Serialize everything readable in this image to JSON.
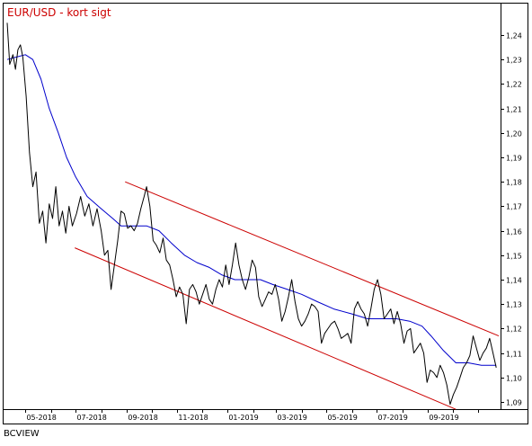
{
  "chart_data": {
    "type": "line",
    "title": "EUR/USD - kort sigt",
    "xlabel": "",
    "ylabel": "",
    "ylim": [
      1.085,
      1.245
    ],
    "y_ticks": [
      1.09,
      1.1,
      1.11,
      1.12,
      1.13,
      1.14,
      1.15,
      1.16,
      1.17,
      1.18,
      1.19,
      1.2,
      1.21,
      1.22,
      1.23,
      1.24
    ],
    "y_tick_labels": [
      "1,09",
      "1,10",
      "1,11",
      "1,12",
      "1,13",
      "1,14",
      "1,15",
      "1,16",
      "1,17",
      "1,18",
      "1,19",
      "1,20",
      "1,21",
      "1,22",
      "1,23",
      "1,24"
    ],
    "y_axis_side": "right",
    "x_tick_labels": [
      "05-2018",
      "07-2018",
      "09-2018",
      "11-2018",
      "01-2019",
      "03-2019",
      "05-2019",
      "07-2019",
      "09-2019"
    ],
    "grid": false,
    "series": [
      {
        "role": "price",
        "color": "#000000",
        "points": [
          [
            "2018-04-09",
            1.245
          ],
          [
            "2018-04-12",
            1.228
          ],
          [
            "2018-04-16",
            1.232
          ],
          [
            "2018-04-19",
            1.226
          ],
          [
            "2018-04-22",
            1.234
          ],
          [
            "2018-04-25",
            1.236
          ],
          [
            "2018-04-28",
            1.231
          ],
          [
            "2018-05-02",
            1.215
          ],
          [
            "2018-05-06",
            1.192
          ],
          [
            "2018-05-10",
            1.178
          ],
          [
            "2018-05-14",
            1.184
          ],
          [
            "2018-05-18",
            1.163
          ],
          [
            "2018-05-22",
            1.168
          ],
          [
            "2018-05-26",
            1.155
          ],
          [
            "2018-05-30",
            1.171
          ],
          [
            "2018-06-03",
            1.165
          ],
          [
            "2018-06-07",
            1.178
          ],
          [
            "2018-06-11",
            1.162
          ],
          [
            "2018-06-15",
            1.168
          ],
          [
            "2018-06-19",
            1.159
          ],
          [
            "2018-06-23",
            1.17
          ],
          [
            "2018-06-27",
            1.162
          ],
          [
            "2018-07-02",
            1.167
          ],
          [
            "2018-07-07",
            1.174
          ],
          [
            "2018-07-12",
            1.166
          ],
          [
            "2018-07-17",
            1.171
          ],
          [
            "2018-07-22",
            1.162
          ],
          [
            "2018-07-27",
            1.169
          ],
          [
            "2018-08-01",
            1.16
          ],
          [
            "2018-08-05",
            1.15
          ],
          [
            "2018-08-09",
            1.152
          ],
          [
            "2018-08-13",
            1.136
          ],
          [
            "2018-08-17",
            1.146
          ],
          [
            "2018-08-21",
            1.156
          ],
          [
            "2018-08-25",
            1.168
          ],
          [
            "2018-08-29",
            1.167
          ],
          [
            "2018-09-02",
            1.161
          ],
          [
            "2018-09-06",
            1.162
          ],
          [
            "2018-09-10",
            1.16
          ],
          [
            "2018-09-14",
            1.163
          ],
          [
            "2018-09-18",
            1.169
          ],
          [
            "2018-09-22",
            1.174
          ],
          [
            "2018-09-25",
            1.178
          ],
          [
            "2018-09-29",
            1.17
          ],
          [
            "2018-10-03",
            1.156
          ],
          [
            "2018-10-07",
            1.154
          ],
          [
            "2018-10-11",
            1.151
          ],
          [
            "2018-10-15",
            1.157
          ],
          [
            "2018-10-19",
            1.148
          ],
          [
            "2018-10-23",
            1.146
          ],
          [
            "2018-10-27",
            1.14
          ],
          [
            "2018-10-31",
            1.133
          ],
          [
            "2018-11-04",
            1.137
          ],
          [
            "2018-11-08",
            1.134
          ],
          [
            "2018-11-12",
            1.122
          ],
          [
            "2018-11-16",
            1.136
          ],
          [
            "2018-11-20",
            1.138
          ],
          [
            "2018-11-24",
            1.135
          ],
          [
            "2018-11-28",
            1.13
          ],
          [
            "2018-12-02",
            1.134
          ],
          [
            "2018-12-06",
            1.138
          ],
          [
            "2018-12-10",
            1.132
          ],
          [
            "2018-12-14",
            1.13
          ],
          [
            "2018-12-18",
            1.136
          ],
          [
            "2018-12-22",
            1.14
          ],
          [
            "2018-12-26",
            1.137
          ],
          [
            "2018-12-30",
            1.146
          ],
          [
            "2019-01-03",
            1.138
          ],
          [
            "2019-01-07",
            1.146
          ],
          [
            "2019-01-11",
            1.155
          ],
          [
            "2019-01-15",
            1.146
          ],
          [
            "2019-01-19",
            1.14
          ],
          [
            "2019-01-23",
            1.136
          ],
          [
            "2019-01-27",
            1.141
          ],
          [
            "2019-01-31",
            1.148
          ],
          [
            "2019-02-04",
            1.145
          ],
          [
            "2019-02-08",
            1.133
          ],
          [
            "2019-02-12",
            1.129
          ],
          [
            "2019-02-16",
            1.132
          ],
          [
            "2019-02-20",
            1.135
          ],
          [
            "2019-02-24",
            1.134
          ],
          [
            "2019-02-28",
            1.138
          ],
          [
            "2019-03-04",
            1.132
          ],
          [
            "2019-03-08",
            1.123
          ],
          [
            "2019-03-12",
            1.127
          ],
          [
            "2019-03-16",
            1.133
          ],
          [
            "2019-03-20",
            1.14
          ],
          [
            "2019-03-24",
            1.131
          ],
          [
            "2019-03-28",
            1.124
          ],
          [
            "2019-04-01",
            1.121
          ],
          [
            "2019-04-05",
            1.123
          ],
          [
            "2019-04-09",
            1.126
          ],
          [
            "2019-04-13",
            1.13
          ],
          [
            "2019-04-17",
            1.129
          ],
          [
            "2019-04-21",
            1.127
          ],
          [
            "2019-04-25",
            1.114
          ],
          [
            "2019-04-29",
            1.118
          ],
          [
            "2019-05-03",
            1.12
          ],
          [
            "2019-05-07",
            1.122
          ],
          [
            "2019-05-11",
            1.123
          ],
          [
            "2019-05-15",
            1.12
          ],
          [
            "2019-05-19",
            1.116
          ],
          [
            "2019-05-23",
            1.117
          ],
          [
            "2019-05-27",
            1.118
          ],
          [
            "2019-05-31",
            1.114
          ],
          [
            "2019-06-04",
            1.128
          ],
          [
            "2019-06-08",
            1.131
          ],
          [
            "2019-06-12",
            1.128
          ],
          [
            "2019-06-16",
            1.126
          ],
          [
            "2019-06-20",
            1.121
          ],
          [
            "2019-06-24",
            1.128
          ],
          [
            "2019-06-28",
            1.136
          ],
          [
            "2019-07-02",
            1.14
          ],
          [
            "2019-07-06",
            1.134
          ],
          [
            "2019-07-10",
            1.124
          ],
          [
            "2019-07-14",
            1.126
          ],
          [
            "2019-07-18",
            1.128
          ],
          [
            "2019-07-22",
            1.122
          ],
          [
            "2019-07-26",
            1.127
          ],
          [
            "2019-07-30",
            1.122
          ],
          [
            "2019-08-03",
            1.114
          ],
          [
            "2019-08-07",
            1.119
          ],
          [
            "2019-08-11",
            1.12
          ],
          [
            "2019-08-15",
            1.11
          ],
          [
            "2019-08-19",
            1.112
          ],
          [
            "2019-08-23",
            1.114
          ],
          [
            "2019-08-27",
            1.11
          ],
          [
            "2019-08-31",
            1.098
          ],
          [
            "2019-09-04",
            1.103
          ],
          [
            "2019-09-08",
            1.102
          ],
          [
            "2019-09-12",
            1.1
          ],
          [
            "2019-09-16",
            1.105
          ],
          [
            "2019-09-20",
            1.102
          ],
          [
            "2019-09-24",
            1.097
          ],
          [
            "2019-09-28",
            1.089
          ],
          [
            "2019-10-02",
            1.093
          ],
          [
            "2019-10-06",
            1.096
          ],
          [
            "2019-10-10",
            1.1
          ],
          [
            "2019-10-14",
            1.104
          ],
          [
            "2019-10-18",
            1.106
          ],
          [
            "2019-10-22",
            1.109
          ],
          [
            "2019-10-26",
            1.117
          ],
          [
            "2019-10-30",
            1.112
          ],
          [
            "2019-11-03",
            1.107
          ],
          [
            "2019-11-07",
            1.11
          ],
          [
            "2019-11-11",
            1.112
          ],
          [
            "2019-11-15",
            1.116
          ],
          [
            "2019-11-19",
            1.11
          ],
          [
            "2019-11-23",
            1.104
          ]
        ]
      },
      {
        "role": "moving-average",
        "color": "#0000cc",
        "points": [
          [
            "2018-04-09",
            1.23
          ],
          [
            "2018-04-20",
            1.231
          ],
          [
            "2018-05-01",
            1.232
          ],
          [
            "2018-05-10",
            1.23
          ],
          [
            "2018-05-20",
            1.222
          ],
          [
            "2018-05-30",
            1.21
          ],
          [
            "2018-06-10",
            1.2
          ],
          [
            "2018-06-20",
            1.19
          ],
          [
            "2018-07-01",
            1.182
          ],
          [
            "2018-07-15",
            1.174
          ],
          [
            "2018-08-01",
            1.169
          ],
          [
            "2018-08-15",
            1.165
          ],
          [
            "2018-08-25",
            1.162
          ],
          [
            "2018-09-10",
            1.162
          ],
          [
            "2018-09-25",
            1.162
          ],
          [
            "2018-10-10",
            1.16
          ],
          [
            "2018-10-25",
            1.155
          ],
          [
            "2018-11-10",
            1.15
          ],
          [
            "2018-11-25",
            1.147
          ],
          [
            "2018-12-10",
            1.145
          ],
          [
            "2018-12-25",
            1.142
          ],
          [
            "2019-01-10",
            1.14
          ],
          [
            "2019-01-25",
            1.14
          ],
          [
            "2019-02-10",
            1.14
          ],
          [
            "2019-02-25",
            1.138
          ],
          [
            "2019-03-15",
            1.136
          ],
          [
            "2019-04-01",
            1.134
          ],
          [
            "2019-04-20",
            1.131
          ],
          [
            "2019-05-10",
            1.128
          ],
          [
            "2019-06-01",
            1.126
          ],
          [
            "2019-06-20",
            1.124
          ],
          [
            "2019-07-10",
            1.124
          ],
          [
            "2019-07-25",
            1.124
          ],
          [
            "2019-08-10",
            1.123
          ],
          [
            "2019-08-25",
            1.121
          ],
          [
            "2019-09-05",
            1.117
          ],
          [
            "2019-09-20",
            1.111
          ],
          [
            "2019-10-05",
            1.106
          ],
          [
            "2019-10-20",
            1.106
          ],
          [
            "2019-11-05",
            1.105
          ],
          [
            "2019-11-23",
            1.105
          ]
        ]
      }
    ],
    "trendlines": [
      {
        "role": "channel-upper",
        "color": "#cc0000",
        "from": [
          "2018-08-30",
          1.18
        ],
        "to": [
          "2019-11-26",
          1.117
        ]
      },
      {
        "role": "channel-lower",
        "color": "#cc0000",
        "from": [
          "2018-06-30",
          1.153
        ],
        "to": [
          "2019-10-05",
          1.087
        ]
      }
    ]
  },
  "footer": {
    "brand": "BCVIEW"
  }
}
